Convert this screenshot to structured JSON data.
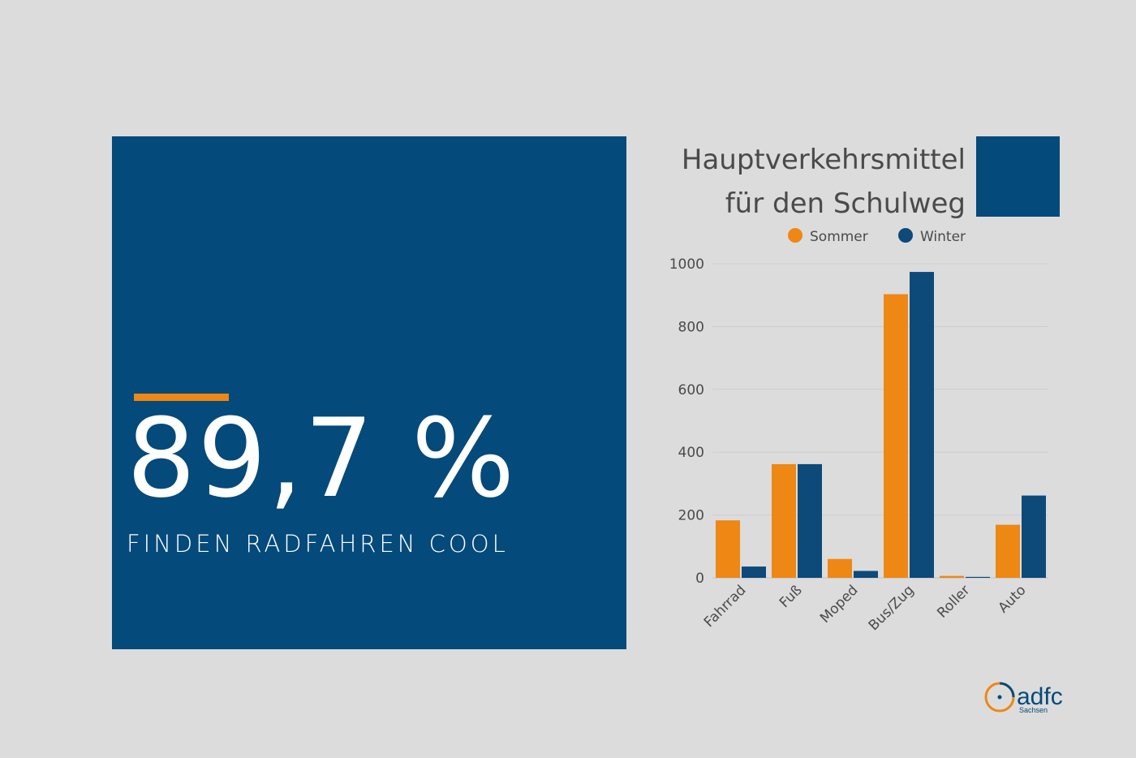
{
  "stat": {
    "value": "89,7 %",
    "caption": "FINDEN RADFAHREN COOL"
  },
  "chart_title": {
    "line1": "Hauptverkehrsmittel",
    "line2": "für den Schulweg"
  },
  "colors": {
    "background": "#dcdcdc",
    "brand_blue": "#044a7b",
    "accent_orange": "#ee8714",
    "sommer": "#ee8714",
    "winter": "#0d4a7a"
  },
  "chart_data": {
    "type": "bar",
    "title": "Hauptverkehrsmittel für den Schulweg",
    "categories": [
      "Fahrrad",
      "Fuß",
      "Moped",
      "Bus/Zug",
      "Roller",
      "Auto"
    ],
    "series": [
      {
        "name": "Sommer",
        "values": [
          183,
          362,
          60,
          903,
          6,
          169
        ]
      },
      {
        "name": "Winter",
        "values": [
          36,
          362,
          22,
          974,
          3,
          262
        ]
      }
    ],
    "yticks": [
      "0",
      "200",
      "400",
      "600",
      "800",
      "1000"
    ],
    "ylim": [
      0,
      1000
    ],
    "grid": true,
    "legend": "top"
  },
  "logo": {
    "name": "adfc",
    "sub": "Sachsen"
  }
}
